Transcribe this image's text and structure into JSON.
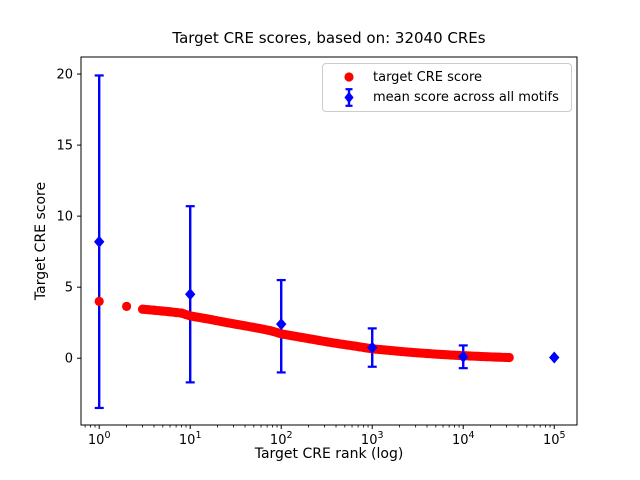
{
  "chart_data": {
    "type": "scatter",
    "title": "Target CRE scores, based on: 32040 CREs",
    "xlabel": "Target CRE rank (log)",
    "ylabel": "Target CRE score",
    "x_scale": "log",
    "x_tick_exponents": [
      0,
      1,
      2,
      3,
      4,
      5
    ],
    "y_ticks": [
      0,
      5,
      10,
      15,
      20
    ],
    "xlim_log10": [
      -0.2,
      5.25
    ],
    "ylim": [
      -4.7,
      21.2
    ],
    "grid": false,
    "legend_position": "upper right",
    "colors": {
      "target": "#ff0000",
      "mean": "#0000ff",
      "axes": "#000000"
    },
    "legend": [
      {
        "label": "target CRE score",
        "marker": "red-circle"
      },
      {
        "label": "mean score across all motifs",
        "marker": "blue-diamond-errorbar"
      }
    ],
    "series": [
      {
        "name": "target CRE score",
        "type": "scatter",
        "marker": "circle",
        "color": "#ff0000",
        "n_points": 32040,
        "keypoints": [
          [
            1,
            4.0
          ],
          [
            2,
            3.65
          ],
          [
            3,
            3.45
          ],
          [
            4,
            3.38
          ],
          [
            5,
            3.32
          ],
          [
            6,
            3.27
          ],
          [
            7,
            3.22
          ],
          [
            8,
            3.18
          ],
          [
            10,
            2.98
          ],
          [
            13,
            2.85
          ],
          [
            17,
            2.72
          ],
          [
            22,
            2.58
          ],
          [
            30,
            2.42
          ],
          [
            40,
            2.28
          ],
          [
            55,
            2.12
          ],
          [
            75,
            1.95
          ],
          [
            100,
            1.72
          ],
          [
            140,
            1.55
          ],
          [
            200,
            1.38
          ],
          [
            300,
            1.18
          ],
          [
            450,
            1.0
          ],
          [
            700,
            0.82
          ],
          [
            1000,
            0.66
          ],
          [
            1500,
            0.56
          ],
          [
            2200,
            0.46
          ],
          [
            3300,
            0.37
          ],
          [
            5000,
            0.29
          ],
          [
            7500,
            0.22
          ],
          [
            11000,
            0.17
          ],
          [
            16000,
            0.12
          ],
          [
            23000,
            0.08
          ],
          [
            32040,
            0.05
          ]
        ]
      },
      {
        "name": "mean score across all motifs",
        "type": "errorbar",
        "marker": "diamond",
        "color": "#0000ff",
        "points": [
          {
            "rank": 1,
            "mean": 8.2,
            "hi": 19.9,
            "lo": -3.5
          },
          {
            "rank": 10,
            "mean": 4.5,
            "hi": 10.7,
            "lo": -1.7
          },
          {
            "rank": 100,
            "mean": 2.4,
            "hi": 5.5,
            "lo": -1.0
          },
          {
            "rank": 1000,
            "mean": 0.75,
            "hi": 2.1,
            "lo": -0.6
          },
          {
            "rank": 10000,
            "mean": 0.1,
            "hi": 0.9,
            "lo": -0.7
          },
          {
            "rank": 100000,
            "mean": 0.05,
            "hi": null,
            "lo": null
          }
        ]
      }
    ]
  }
}
